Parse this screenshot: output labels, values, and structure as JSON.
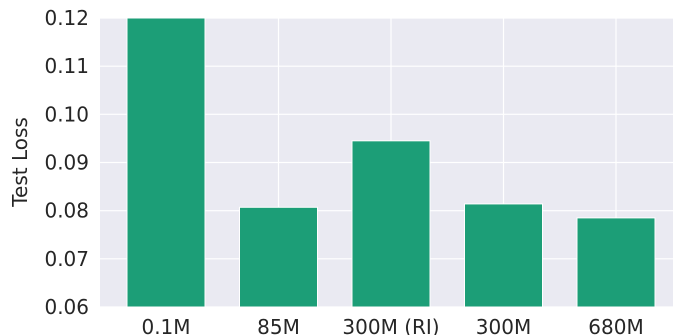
{
  "chart_data": {
    "type": "bar",
    "categories": [
      "0.1M",
      "85M",
      "300M (RI)",
      "300M",
      "680M"
    ],
    "values": [
      0.12,
      0.0807,
      0.0945,
      0.0814,
      0.0785
    ],
    "xlabel": "",
    "ylabel": "Test Loss",
    "ylim": [
      0.06,
      0.12
    ],
    "yticks": [
      "0.06",
      "0.07",
      "0.08",
      "0.09",
      "0.10",
      "0.11",
      "0.12"
    ],
    "grid": true,
    "colors": {
      "bar": "#1c9e77",
      "plot_background": "#eaeaf2",
      "grid": "#ffffff"
    }
  }
}
